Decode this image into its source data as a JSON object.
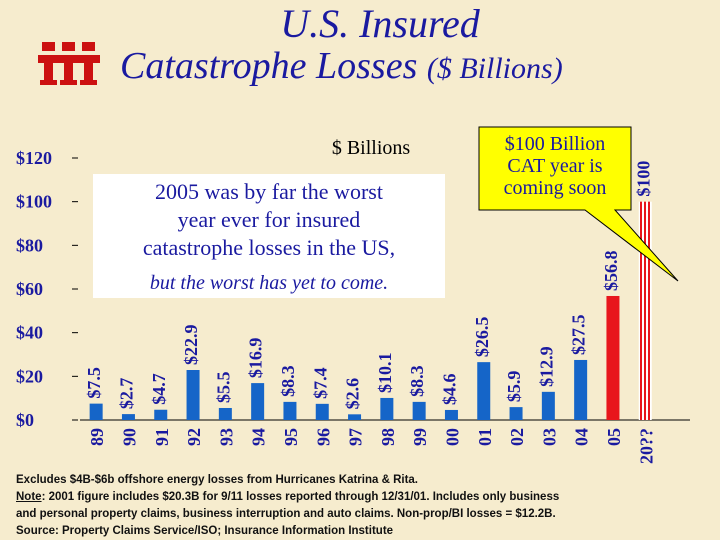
{
  "title_line1": "U.S. Insured",
  "title_line2": "Catastrophe Losses",
  "title_unit": "($ Billions)",
  "logo_text": "iii",
  "colors": {
    "bar": "#1565c8",
    "highlight": "#e8161c",
    "title": "#1a1aa0",
    "callout_fill": "#ffff00"
  },
  "chart_data": {
    "type": "bar",
    "subtitle": "$ Billions",
    "categories": [
      "89",
      "90",
      "91",
      "92",
      "93",
      "94",
      "95",
      "96",
      "97",
      "98",
      "99",
      "00",
      "01",
      "02",
      "03",
      "04",
      "05",
      "20??"
    ],
    "values": [
      7.5,
      2.7,
      4.7,
      22.9,
      5.5,
      16.9,
      8.3,
      7.4,
      2.6,
      10.1,
      8.3,
      4.6,
      26.5,
      5.9,
      12.9,
      27.5,
      56.8,
      100
    ],
    "data_labels": [
      "$7.5",
      "$2.7",
      "$4.7",
      "$22.9",
      "$5.5",
      "$16.9",
      "$8.3",
      "$7.4",
      "$2.6",
      "$10.1",
      "$8.3",
      "$4.6",
      "$26.5",
      "$5.9",
      "$12.9",
      "$27.5",
      "$56.8",
      "$100"
    ],
    "bar_styles": [
      "solid",
      "solid",
      "solid",
      "solid",
      "solid",
      "solid",
      "solid",
      "solid",
      "solid",
      "solid",
      "solid",
      "solid",
      "solid",
      "solid",
      "solid",
      "solid",
      "highlight",
      "striped"
    ],
    "y_ticks": [
      "$0",
      "$20",
      "$40",
      "$60",
      "$80",
      "$100",
      "$120"
    ],
    "y_tick_values": [
      0,
      20,
      40,
      60,
      80,
      100,
      120
    ],
    "ylim": [
      0,
      120
    ],
    "annotation_main": [
      "2005 was by far the worst",
      "year ever for insured",
      "catastrophe losses in the US,"
    ],
    "annotation_italic": "but the worst has yet to come.",
    "callout": [
      "$100 Billion",
      "CAT year is",
      "coming soon"
    ]
  },
  "footnote": {
    "line1": "Excludes $4B-$6b offshore energy losses from Hurricanes Katrina & Rita.",
    "note_label": "Note",
    "line2": ": 2001 figure includes $20.3B for 9/11 losses reported through 12/31/01.  Includes only business",
    "line3": "and personal property claims, business interruption and auto claims.  Non-prop/BI losses = $12.2B.",
    "line4": "Source:  Property Claims Service/ISO; Insurance Information Institute"
  }
}
